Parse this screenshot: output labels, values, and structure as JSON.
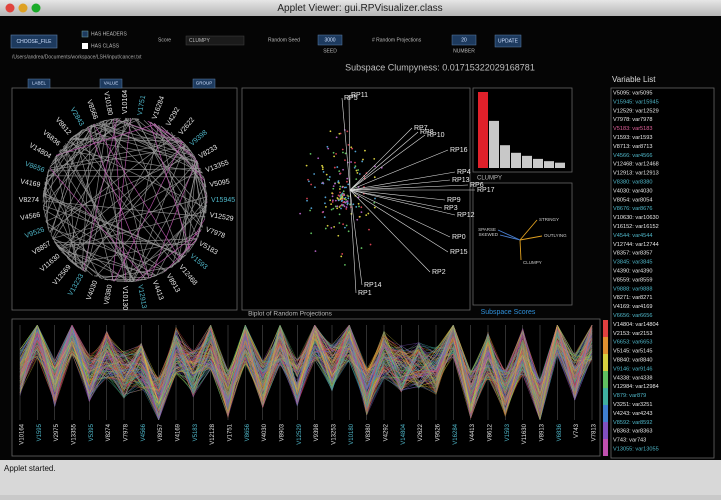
{
  "window": {
    "title": "Applet Viewer: gui.RPVisualizer.class",
    "status": "Applet started."
  },
  "toolbar": {
    "choose_file": "CHOOSE_FILE",
    "has_headers": "HAS HEADERS",
    "has_class": "HAS CLASS",
    "score_label": "Score",
    "score_value": "CLUMPY",
    "seed_label": "Random Seed",
    "seed_value": "3000",
    "seed_button": "SEED",
    "projections_label": "# Random Projections",
    "projections_value": "20",
    "projections_button": "NUMBER",
    "update": "UPDATE",
    "path": "/Users/andrea/Documents/workspace/LSH/input/cancer.txt"
  },
  "clumpyness": "Subspace Clumpyness: 0.01715322029168781",
  "circle_panel": {
    "buttons": [
      "LABEL",
      "VALUE",
      "GROUP"
    ],
    "labels": [
      "V10164",
      "V1751",
      "V16284",
      "V4292",
      "V2622",
      "V9398",
      "V8233",
      "V13355",
      "V5095",
      "V15945",
      "V12529",
      "V7978",
      "V5183",
      "V1593",
      "V12468",
      "V8913",
      "V4413",
      "V12913",
      "V10130",
      "V8380",
      "V4030",
      "V13233",
      "V12569",
      "V11630",
      "V8857",
      "V9526",
      "V4566",
      "V8274",
      "V4169",
      "V8656",
      "V14804",
      "V6836",
      "V8612",
      "V2843",
      "V8566",
      "V10180"
    ]
  },
  "biplot": {
    "title": "Biplot of Random Projections",
    "vectors": [
      "RP5",
      "RP11",
      "RP7",
      "RP8",
      "RP10",
      "RP16",
      "RP4",
      "RP13",
      "RP6",
      "RP17",
      "RP9",
      "RP12",
      "RP3",
      "RP0",
      "RP15",
      "RP2",
      "RP14",
      "RP1"
    ]
  },
  "histogram": {
    "label": "CLUMPY",
    "values": [
      100,
      62,
      30,
      20,
      16,
      12,
      9,
      7
    ]
  },
  "scores": {
    "title": "Subspace Scores",
    "axes": [
      "STRINGY",
      "OUTLYING",
      "CLUMPY",
      "SKEWED",
      "SPARSE"
    ]
  },
  "parallel": {
    "axes": [
      "V10164",
      "V1595",
      "V2975",
      "V13355",
      "V5395",
      "V8274",
      "V7978",
      "V4566",
      "V8057",
      "V4169",
      "V5183",
      "V12128",
      "V1751",
      "V8656",
      "V4030",
      "V8903",
      "V12529",
      "V9398",
      "V13253",
      "V10180",
      "V8380",
      "V4292",
      "V14804",
      "V2622",
      "V9526",
      "V16284",
      "V4413",
      "V8612",
      "V1593",
      "V11630",
      "V8913",
      "V6836",
      "V743",
      "V7813"
    ]
  },
  "variable_list": {
    "title": "Variable List",
    "items": [
      "V5095: var5095",
      "V15945: var15945",
      "V12529: var12529",
      "V7978: var7978",
      "V5183: var5183",
      "V1593: var1593",
      "V8713: var8713",
      "V4566: var4566",
      "V12468: var12468",
      "V12913: var12913",
      "V8380: var8380",
      "V4030: var4030",
      "V8054: var8054",
      "V8676: var8676",
      "V10630: var10630",
      "V16152: var16152",
      "V4544: var4544",
      "V12744: var12744",
      "V8357: var8357",
      "V3845: var3845",
      "V4390: var4390",
      "V8559: var8559",
      "V9888: var9888",
      "V8271: var8271",
      "V4169: var4169",
      "V6656: var6656",
      "V14804: var14804",
      "V2153: var2153",
      "V6653: var6653",
      "V5145: var5145",
      "V8840: var8840",
      "V9146: var9146",
      "V4338: var4338",
      "V12984: var12984",
      "V879: var879",
      "V3251: var3251",
      "V4243: var4243",
      "V8592: var8592",
      "V8363: var8363",
      "V743: var743",
      "V13055: var13055"
    ]
  }
}
